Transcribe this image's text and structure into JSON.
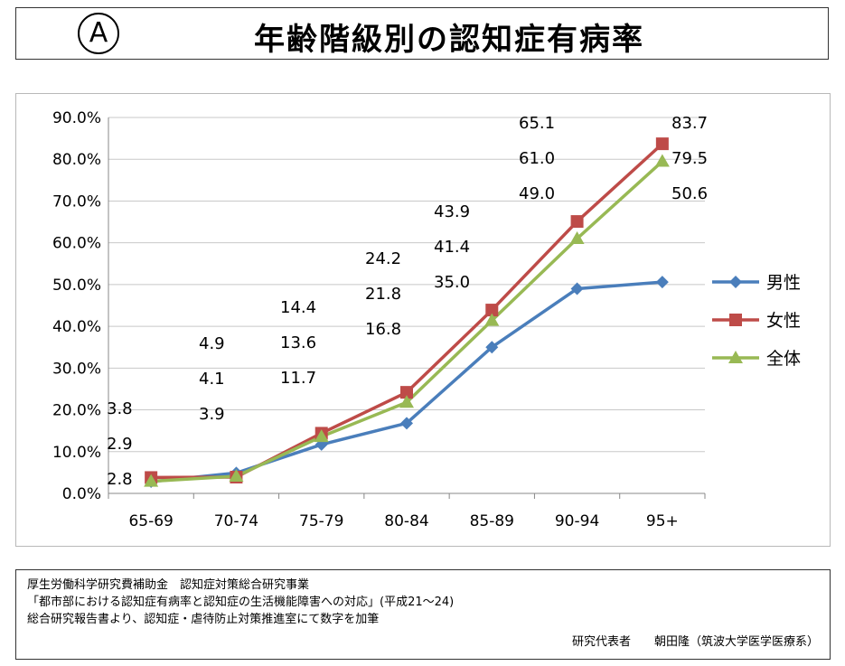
{
  "header": {
    "badge": "A",
    "title": "年齢階級別の認知症有病率"
  },
  "chart_data": {
    "type": "line",
    "categories": [
      "65-69",
      "70-74",
      "75-79",
      "80-84",
      "85-89",
      "90-94",
      "95+"
    ],
    "ylim": [
      0,
      90
    ],
    "y_ticks": [
      "0.0%",
      "10.0%",
      "20.0%",
      "30.0%",
      "40.0%",
      "50.0%",
      "60.0%",
      "70.0%",
      "80.0%",
      "90.0%"
    ],
    "grid": true,
    "legend_position": "right",
    "series": [
      {
        "name": "男性",
        "color": "#4a7ebb",
        "marker": "diamond",
        "values": [
          2.8,
          4.9,
          11.7,
          16.8,
          35.0,
          49.0,
          50.6
        ]
      },
      {
        "name": "女性",
        "color": "#be4b48",
        "marker": "square",
        "values": [
          3.8,
          3.9,
          14.4,
          24.2,
          43.9,
          65.1,
          83.7
        ]
      },
      {
        "name": "全体",
        "color": "#98b954",
        "marker": "triangle",
        "values": [
          2.9,
          4.1,
          13.6,
          21.8,
          41.4,
          61.0,
          79.5
        ]
      }
    ],
    "data_labels": [
      [
        "3.8",
        "2.9",
        "2.8"
      ],
      [
        "4.9",
        "4.1",
        "3.9"
      ],
      [
        "14.4",
        "13.6",
        "11.7"
      ],
      [
        "24.2",
        "21.8",
        "16.8"
      ],
      [
        "43.9",
        "41.4",
        "35.0"
      ],
      [
        "65.1",
        "61.0",
        "49.0"
      ],
      [
        "83.7",
        "79.5",
        "50.6"
      ]
    ]
  },
  "source": {
    "line1": "厚生労働科学研究費補助金　認知症対策総合研究事業",
    "line2": "「都市部における認知症有病率と認知症の生活機能障害への対応」(平成21～24)",
    "line3": "総合研究報告書より、認知症・虐待防止対策推進室にて数字を加筆",
    "author": "研究代表者　　朝田隆（筑波大学医学医療系）"
  }
}
